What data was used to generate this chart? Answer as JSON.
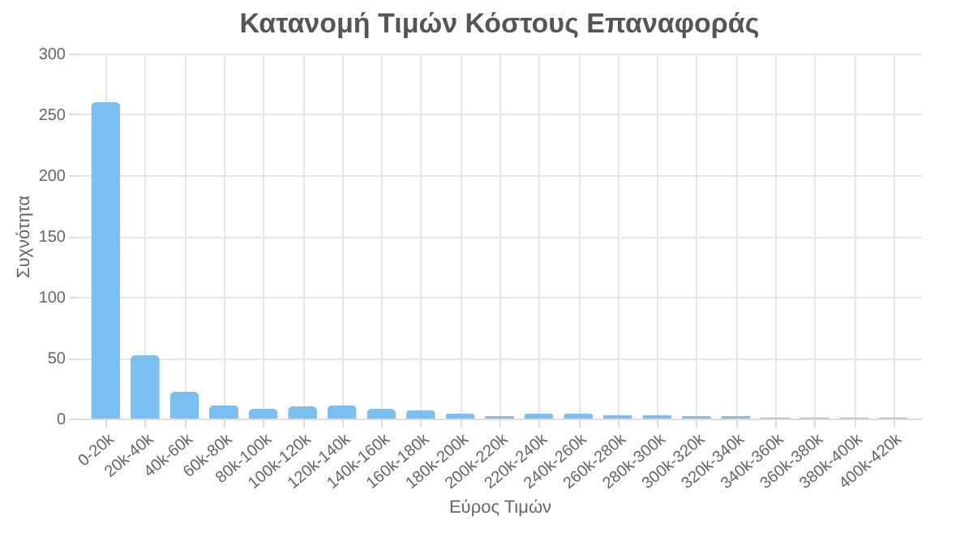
{
  "chart_data": {
    "type": "bar",
    "title": "Κατανομή Τιμών Κόστους Επαναφοράς",
    "xlabel": "Εύρος Τιμών",
    "ylabel": "Συχνότητα",
    "categories": [
      "0-20k",
      "20k-40k",
      "40k-60k",
      "60k-80k",
      "80k-100k",
      "100k-120k",
      "120k-140k",
      "140k-160k",
      "160k-180k",
      "180k-200k",
      "200k-220k",
      "220k-240k",
      "240k-260k",
      "260k-280k",
      "280k-300k",
      "300k-320k",
      "320k-340k",
      "340k-360k",
      "360k-380k",
      "380k-400k",
      "400k-420k"
    ],
    "values": [
      260,
      52,
      22,
      11,
      8,
      10,
      11,
      8,
      7,
      4,
      2,
      4,
      4,
      3,
      3,
      2,
      2,
      1,
      1,
      1,
      1
    ],
    "color": "#74bdf0",
    "ylim": [
      0,
      300
    ],
    "yticks": [
      0,
      50,
      100,
      150,
      200,
      250,
      300
    ],
    "grid": true
  }
}
